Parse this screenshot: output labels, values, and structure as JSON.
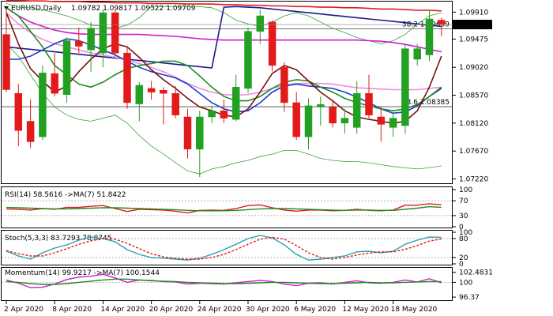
{
  "chart_data": [
    {
      "type": "candlestick",
      "panel": "main",
      "symbol_label": "EURUSD,Daily",
      "ohlc_header": "1.09782 1.09817 1.09522 1.09709",
      "price_label": "1.09709",
      "ylim": [
        1.0715,
        1.1008
      ],
      "y_ticks": [
        "1.09910",
        "1.09475",
        "1.09020",
        "1.08570",
        "1.08120",
        "1.07670",
        "1.07220"
      ],
      "x_tick_labels": [
        "2 Apr 2020",
        "8 Apr 2020",
        "14 Apr 2020",
        "20 Apr 2020",
        "24 Apr 2020",
        "30 Apr 2020",
        "6 May 2020",
        "12 May 2020",
        "18 May 2020"
      ],
      "x_tick_indices": [
        0,
        4,
        8,
        12,
        16,
        20,
        24,
        28,
        32
      ],
      "candles": [
        {
          "o": 1.0955,
          "h": 1.0998,
          "l": 1.0862,
          "c": 1.0866
        },
        {
          "o": 1.086,
          "h": 1.0875,
          "l": 1.0775,
          "c": 1.08
        },
        {
          "o": 1.0815,
          "h": 1.085,
          "l": 1.0772,
          "c": 1.0782
        },
        {
          "o": 1.079,
          "h": 1.0905,
          "l": 1.0785,
          "c": 1.0893
        },
        {
          "o": 1.0892,
          "h": 1.0925,
          "l": 1.0855,
          "c": 1.086
        },
        {
          "o": 1.0858,
          "h": 1.095,
          "l": 1.0845,
          "c": 1.0945
        },
        {
          "o": 1.0944,
          "h": 1.0966,
          "l": 1.0925,
          "c": 1.0936
        },
        {
          "o": 1.093,
          "h": 1.0975,
          "l": 1.0895,
          "c": 1.0965
        },
        {
          "o": 1.0925,
          "h": 1.0995,
          "l": 1.0902,
          "c": 1.099
        },
        {
          "o": 1.099,
          "h": 1.0995,
          "l": 1.0918,
          "c": 1.0925
        },
        {
          "o": 1.0925,
          "h": 1.0935,
          "l": 1.0835,
          "c": 1.0845
        },
        {
          "o": 1.0843,
          "h": 1.0878,
          "l": 1.0815,
          "c": 1.0873
        },
        {
          "o": 1.0868,
          "h": 1.088,
          "l": 1.085,
          "c": 1.0862
        },
        {
          "o": 1.0865,
          "h": 1.087,
          "l": 1.081,
          "c": 1.086
        },
        {
          "o": 1.086,
          "h": 1.0872,
          "l": 1.082,
          "c": 1.0825
        },
        {
          "o": 1.0822,
          "h": 1.0835,
          "l": 1.0755,
          "c": 1.077
        },
        {
          "o": 1.077,
          "h": 1.0832,
          "l": 1.0725,
          "c": 1.0822
        },
        {
          "o": 1.0822,
          "h": 1.084,
          "l": 1.0812,
          "c": 1.0832
        },
        {
          "o": 1.0832,
          "h": 1.085,
          "l": 1.0812,
          "c": 1.082
        },
        {
          "o": 1.0818,
          "h": 1.089,
          "l": 1.0815,
          "c": 1.087
        },
        {
          "o": 1.0868,
          "h": 1.0966,
          "l": 1.086,
          "c": 1.096
        },
        {
          "o": 1.096,
          "h": 1.0995,
          "l": 1.094,
          "c": 1.0985
        },
        {
          "o": 1.0975,
          "h": 1.0978,
          "l": 1.0895,
          "c": 1.0905
        },
        {
          "o": 1.0902,
          "h": 1.091,
          "l": 1.083,
          "c": 1.0845
        },
        {
          "o": 1.0845,
          "h": 1.0862,
          "l": 1.0785,
          "c": 1.079
        },
        {
          "o": 1.079,
          "h": 1.0852,
          "l": 1.077,
          "c": 1.084
        },
        {
          "o": 1.0838,
          "h": 1.0855,
          "l": 1.0808,
          "c": 1.0842
        },
        {
          "o": 1.0838,
          "h": 1.085,
          "l": 1.0805,
          "c": 1.0812
        },
        {
          "o": 1.0812,
          "h": 1.0835,
          "l": 1.0795,
          "c": 1.082
        },
        {
          "o": 1.0805,
          "h": 1.088,
          "l": 1.0795,
          "c": 1.086
        },
        {
          "o": 1.086,
          "h": 1.089,
          "l": 1.082,
          "c": 1.0825
        },
        {
          "o": 1.0822,
          "h": 1.0838,
          "l": 1.0782,
          "c": 1.081
        },
        {
          "o": 1.0805,
          "h": 1.083,
          "l": 1.079,
          "c": 1.082
        },
        {
          "o": 1.0808,
          "h": 1.094,
          "l": 1.0795,
          "c": 1.0932
        },
        {
          "o": 1.0915,
          "h": 1.094,
          "l": 1.0905,
          "c": 1.0932
        },
        {
          "o": 1.0922,
          "h": 1.0995,
          "l": 1.0912,
          "c": 1.098
        },
        {
          "o": 1.0978,
          "h": 1.0982,
          "l": 1.0952,
          "c": 1.0971
        }
      ],
      "moving_averages": [
        {
          "color": "#1a1a8c",
          "values": [
            1.0935,
            1.0933,
            1.0931,
            1.0929,
            1.0927,
            1.0925,
            1.0923,
            1.0921,
            1.0919,
            1.0917,
            1.0915,
            1.0913,
            1.0911,
            1.0909,
            1.0907,
            1.0905,
            1.0903,
            1.0901,
            1.0999,
            1.1,
            1.0999,
            1.0998,
            1.0996,
            1.0994,
            1.0992,
            1.099,
            1.0988,
            1.0986,
            1.0984,
            1.0982,
            1.098,
            1.0978,
            1.0976,
            1.0974,
            1.0972,
            1.097,
            1.0968
          ]
        },
        {
          "color": "#e31a1a",
          "values": [
            1.101,
            1.101,
            1.1009,
            1.1009,
            1.1008,
            1.1008,
            1.1008,
            1.1007,
            1.1007,
            1.1006,
            1.1006,
            1.1006,
            1.1005,
            1.1005,
            1.1005,
            1.1004,
            1.1004,
            1.1004,
            1.1003,
            1.1003,
            1.1002,
            1.1002,
            1.1001,
            1.1001,
            1.1,
            1.1,
            1.0999,
            1.0999,
            1.0998,
            1.0998,
            1.0997,
            1.0996,
            1.0996,
            1.0995,
            1.0994,
            1.0994,
            1.0993
          ]
        },
        {
          "color": "#d21ad2",
          "values": [
            1.0998,
            1.0985,
            1.0975,
            1.0968,
            1.0962,
            1.0958,
            1.0956,
            1.0955,
            1.0955,
            1.0955,
            1.0955,
            1.0955,
            1.0954,
            1.0953,
            1.0952,
            1.095,
            1.0948,
            1.0947,
            1.0946,
            1.0946,
            1.0946,
            1.0946,
            1.0946,
            1.0946,
            1.0946,
            1.0946,
            1.0946,
            1.0946,
            1.0946,
            1.0946,
            1.0945,
            1.0944,
            1.0942,
            1.0939,
            1.0935,
            1.0931,
            1.0927
          ]
        },
        {
          "color": "#f08cdc",
          "values": [
            1.099,
            1.0972,
            1.0958,
            1.0947,
            1.094,
            1.0935,
            1.093,
            1.0925,
            1.0922,
            1.0918,
            1.0914,
            1.0908,
            1.0902,
            1.0895,
            1.0886,
            1.0876,
            1.0868,
            1.0862,
            1.0858,
            1.0857,
            1.0858,
            1.0862,
            1.0868,
            1.0873,
            1.0876,
            1.0876,
            1.0876,
            1.0875,
            1.0872,
            1.0869,
            1.0868,
            1.0867,
            1.0866,
            1.0866,
            1.0866,
            1.0868,
            1.087
          ]
        },
        {
          "color": "#1a3cd2",
          "values": [
            1.0915,
            1.0915,
            1.092,
            1.093,
            1.094,
            1.0948,
            1.0945,
            1.0938,
            1.093,
            1.0922,
            1.0912,
            1.0902,
            1.0895,
            1.089,
            1.0885,
            1.0875,
            1.086,
            1.0845,
            1.0835,
            1.083,
            1.0832,
            1.0845,
            1.0862,
            1.0872,
            1.0875,
            1.0872,
            1.087,
            1.0868,
            1.0862,
            1.0854,
            1.0845,
            1.0835,
            1.0828,
            1.083,
            1.084,
            1.0855,
            1.0868
          ]
        },
        {
          "color": "#1e8c1e",
          "values": [
            1.0998,
            1.0985,
            1.096,
            1.0935,
            1.0905,
            1.089,
            1.0875,
            1.087,
            1.0878,
            1.089,
            1.09,
            1.0905,
            1.0908,
            1.0912,
            1.0912,
            1.0905,
            1.0888,
            1.087,
            1.0855,
            1.0848,
            1.0848,
            1.0855,
            1.0868,
            1.0878,
            1.0882,
            1.088,
            1.087,
            1.0862,
            1.0852,
            1.0845,
            1.084,
            1.0835,
            1.0832,
            1.0835,
            1.0842,
            1.0855,
            1.087
          ]
        },
        {
          "color": "#7a1010",
          "values": [
            1.099,
            1.094,
            1.09,
            1.088,
            1.0862,
            1.0872,
            1.0895,
            1.0915,
            1.0932,
            1.094,
            1.0935,
            1.0918,
            1.0898,
            1.0882,
            1.0868,
            1.0852,
            1.0838,
            1.0832,
            1.0825,
            1.0822,
            1.0835,
            1.0862,
            1.0892,
            1.0905,
            1.0898,
            1.088,
            1.0862,
            1.0848,
            1.0832,
            1.0822,
            1.0818,
            1.0815,
            1.0812,
            1.0815,
            1.0832,
            1.087,
            1.092
          ]
        }
      ],
      "bollinger": {
        "color": "#3aa03a",
        "upper": [
          1.1005,
          1.0999,
          1.0998,
          1.0995,
          1.099,
          1.0985,
          1.0978,
          1.097,
          1.0968,
          1.0965,
          1.097,
          1.0982,
          1.1,
          1.1,
          1.1,
          1.1,
          1.1,
          1.0998,
          1.099,
          1.0978,
          1.0972,
          1.0968,
          1.0975,
          1.0985,
          1.099,
          1.0985,
          1.0975,
          1.0965,
          1.0958,
          1.095,
          1.0945,
          1.094,
          1.0945,
          1.0955,
          1.0972,
          1.0985,
          1.099
        ],
        "lower": [
          1.094,
          1.092,
          1.089,
          1.086,
          1.0838,
          1.0825,
          1.0818,
          1.0815,
          1.082,
          1.0825,
          1.0812,
          1.0792,
          1.0775,
          1.0762,
          1.0748,
          1.0735,
          1.073,
          1.0738,
          1.0742,
          1.0748,
          1.0752,
          1.0758,
          1.0762,
          1.0768,
          1.0768,
          1.0762,
          1.0755,
          1.0752,
          1.075,
          1.075,
          1.0748,
          1.0745,
          1.0742,
          1.074,
          1.0738,
          1.074,
          1.0743
        ]
      },
      "fib_levels": [
        {
          "label": "38.2 1.09639",
          "value": 1.09639
        },
        {
          "label": "23.6 1.08385",
          "value": 1.08385
        }
      ]
    },
    {
      "type": "line",
      "panel": "rsi",
      "label": "RSI(14) 58.5616  ->MA(7) 51.8422",
      "ylim": [
        0,
        100
      ],
      "levels": [
        70,
        30
      ],
      "y_ticks": [
        "100",
        "70",
        "30",
        "0"
      ],
      "series": [
        {
          "color": "#e31a1a",
          "values": [
            48,
            47,
            45,
            49,
            47,
            52,
            52,
            55,
            57,
            49,
            41,
            47,
            46,
            45,
            42,
            37,
            44,
            45,
            44,
            49,
            57,
            59,
            51,
            45,
            42,
            45,
            45,
            43,
            44,
            47,
            44,
            43,
            45,
            58,
            58,
            62,
            59
          ]
        },
        {
          "color": "#1e8c1e",
          "values": [
            52,
            51,
            50,
            49,
            48,
            48,
            49,
            50,
            51,
            51,
            50,
            49,
            48,
            47,
            46,
            44,
            43,
            43,
            43,
            44,
            46,
            48,
            49,
            49,
            48,
            47,
            46,
            45,
            44,
            45,
            45,
            44,
            44,
            47,
            50,
            54,
            52
          ]
        }
      ]
    },
    {
      "type": "line",
      "panel": "stoch",
      "label": "Stoch(5,3,3) 83.7293 78.8745",
      "ylim": [
        0,
        100
      ],
      "levels": [
        80,
        20
      ],
      "y_ticks": [
        "100",
        "80",
        "20",
        "0"
      ],
      "series": [
        {
          "color": "#2aa0b4",
          "values": [
            40,
            25,
            15,
            35,
            50,
            60,
            75,
            85,
            80,
            70,
            45,
            30,
            20,
            18,
            15,
            12,
            18,
            30,
            45,
            62,
            80,
            90,
            82,
            60,
            30,
            12,
            15,
            20,
            25,
            38,
            40,
            35,
            40,
            62,
            75,
            85,
            84
          ]
        },
        {
          "color": "#e31a1a",
          "dashed": true,
          "values": [
            42,
            32,
            25,
            25,
            35,
            48,
            62,
            73,
            80,
            78,
            65,
            48,
            32,
            22,
            17,
            15,
            15,
            20,
            30,
            45,
            62,
            78,
            84,
            78,
            58,
            35,
            20,
            15,
            20,
            28,
            34,
            38,
            38,
            46,
            58,
            72,
            79
          ]
        }
      ]
    },
    {
      "type": "line",
      "panel": "momentum",
      "label": "Momentum(14) 99.9217  ->MA(7) 100.1544",
      "ylim": [
        96.0,
        103.2
      ],
      "levels": [
        100
      ],
      "y_ticks": [
        "102.4831",
        "100",
        "96.37"
      ],
      "series": [
        {
          "color": "#d21ad2",
          "values": [
            100.6,
            99.8,
            98.7,
            98.8,
            99.6,
            100.7,
            101.3,
            101.5,
            102.0,
            101.1,
            100.0,
            100.6,
            100.5,
            100.2,
            100.1,
            99.6,
            99.8,
            99.7,
            99.6,
            99.9,
            100.2,
            100.5,
            100.2,
            99.6,
            99.2,
            99.8,
            99.9,
            99.6,
            100.0,
            100.4,
            99.9,
            99.8,
            100.0,
            100.6,
            100.1,
            100.9,
            99.9
          ]
        },
        {
          "color": "#1e8c1e",
          "values": [
            100.2,
            100.0,
            99.7,
            99.5,
            99.5,
            99.7,
            100.0,
            100.3,
            100.6,
            100.8,
            100.8,
            100.6,
            100.4,
            100.3,
            100.2,
            100.0,
            99.9,
            99.8,
            99.7,
            99.7,
            99.8,
            99.9,
            100.0,
            100.0,
            99.9,
            99.8,
            99.7,
            99.7,
            99.8,
            99.9,
            100.0,
            99.9,
            99.9,
            100.0,
            100.1,
            100.2,
            100.2
          ]
        }
      ]
    }
  ]
}
